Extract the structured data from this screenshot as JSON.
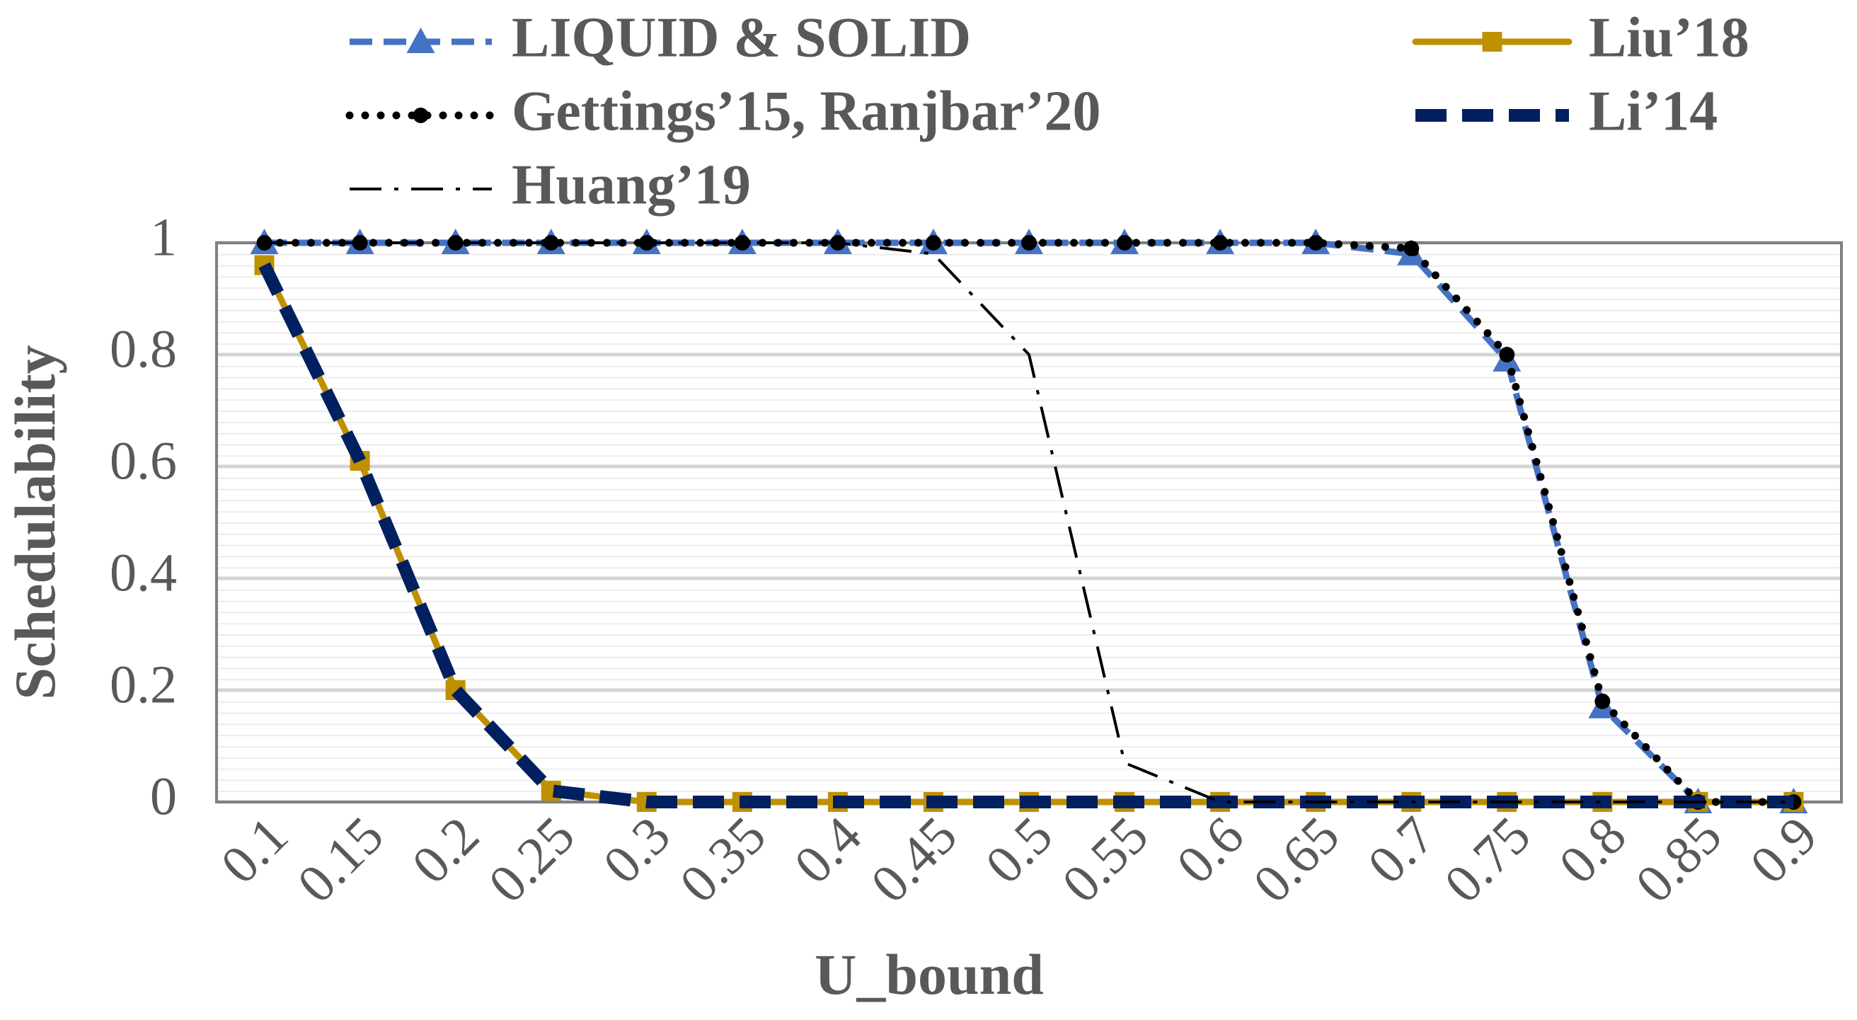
{
  "chart_data": {
    "type": "line",
    "x_label": "U_bound",
    "y_label": "Schedulability",
    "categories": [
      "0.1",
      "0.15",
      "0.2",
      "0.25",
      "0.3",
      "0.35",
      "0.4",
      "0.45",
      "0.5",
      "0.55",
      "0.6",
      "0.65",
      "0.7",
      "0.75",
      "0.8",
      "0.85",
      "0.9"
    ],
    "series": [
      {
        "name": "LIQUID & SOLID",
        "color": "#4472c4",
        "marker": "triangle",
        "dash": "dashed",
        "values": [
          1,
          1,
          1,
          1,
          1,
          1,
          1,
          1,
          1,
          1,
          1,
          1,
          0.98,
          0.79,
          0.17,
          0,
          0
        ]
      },
      {
        "name": "Liu’18",
        "color": "#bf9000",
        "marker": "square",
        "dash": "solid",
        "values": [
          0.96,
          0.61,
          0.2,
          0.02,
          0,
          0,
          0,
          0,
          0,
          0,
          0,
          0,
          0,
          0,
          0,
          0,
          0
        ]
      },
      {
        "name": "Gettings’15, Ranjbar’20",
        "color": "#000000",
        "marker": "circle",
        "dash": "dotted",
        "values": [
          1,
          1,
          1,
          1,
          1,
          1,
          1,
          1,
          1,
          1,
          1,
          1,
          0.99,
          0.8,
          0.18,
          0,
          0
        ]
      },
      {
        "name": "Li’14",
        "color": "#002060",
        "marker": null,
        "dash": "long-dash",
        "values": [
          0.96,
          0.61,
          0.2,
          0.02,
          0,
          0,
          0,
          0,
          0,
          0,
          0,
          0,
          0,
          0,
          0,
          0,
          0
        ]
      },
      {
        "name": "Huang’19",
        "color": "#000000",
        "marker": null,
        "dash": "dash-dot",
        "values": [
          1,
          1,
          1,
          1,
          1,
          1,
          1,
          0.98,
          0.8,
          0.07,
          0,
          0,
          0,
          0,
          0,
          0,
          0
        ]
      }
    ],
    "ylim": [
      0,
      1
    ],
    "yticks": [
      0,
      0.2,
      0.4,
      0.6,
      0.8,
      1
    ],
    "grid": true,
    "legend": "top"
  }
}
